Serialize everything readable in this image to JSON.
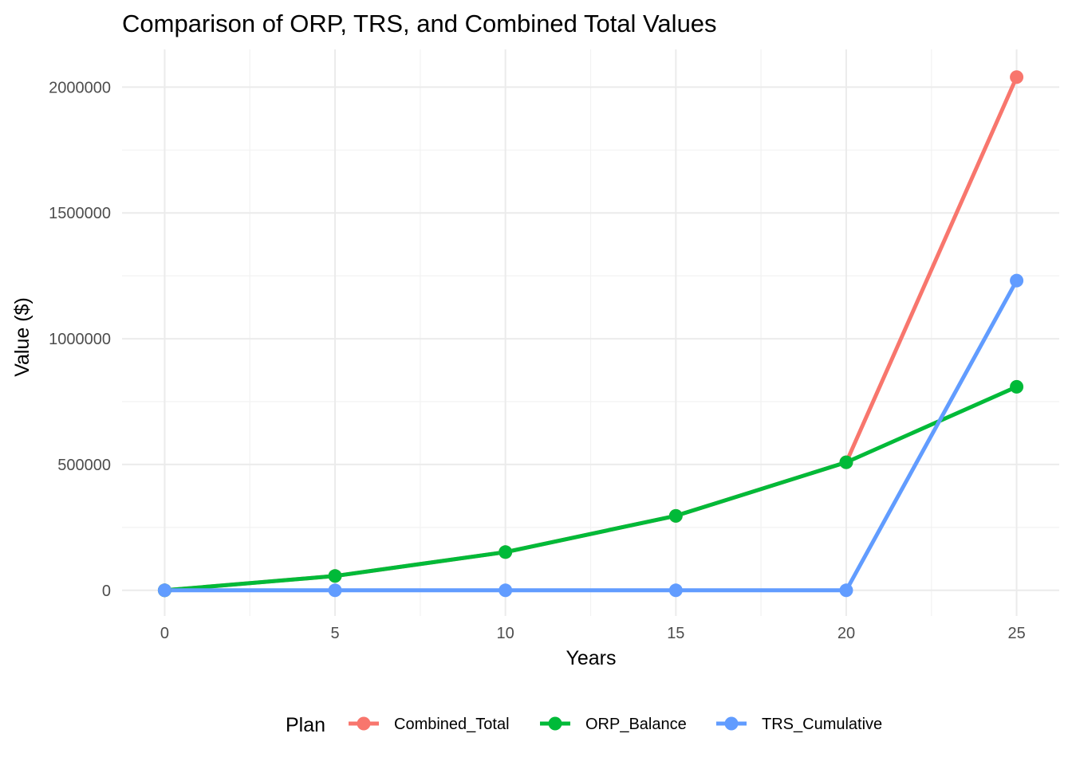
{
  "chart_data": {
    "type": "line",
    "title": "Comparison of ORP, TRS, and Combined Total Values",
    "xlabel": "Years",
    "ylabel": "Value ($)",
    "x": [
      0,
      5,
      10,
      15,
      20,
      25
    ],
    "x_ticks": [
      "0",
      "5",
      "10",
      "15",
      "20",
      "25"
    ],
    "y_ticks": [
      "0",
      "500000",
      "1000000",
      "1500000",
      "2000000"
    ],
    "xlim": [
      -1.25,
      26.25
    ],
    "ylim": [
      -102000,
      2150000
    ],
    "grid": true,
    "legend": {
      "title": "Plan",
      "position": "bottom"
    },
    "series": [
      {
        "name": "Combined_Total",
        "color": "#F8766D",
        "values": [
          0,
          57000,
          152000,
          296000,
          509000,
          2040000
        ]
      },
      {
        "name": "ORP_Balance",
        "color": "#00BA38",
        "values": [
          0,
          57000,
          152000,
          296000,
          509000,
          809000
        ]
      },
      {
        "name": "TRS_Cumulative",
        "color": "#619CFF",
        "values": [
          0,
          0,
          0,
          0,
          0,
          1231000
        ]
      }
    ]
  }
}
